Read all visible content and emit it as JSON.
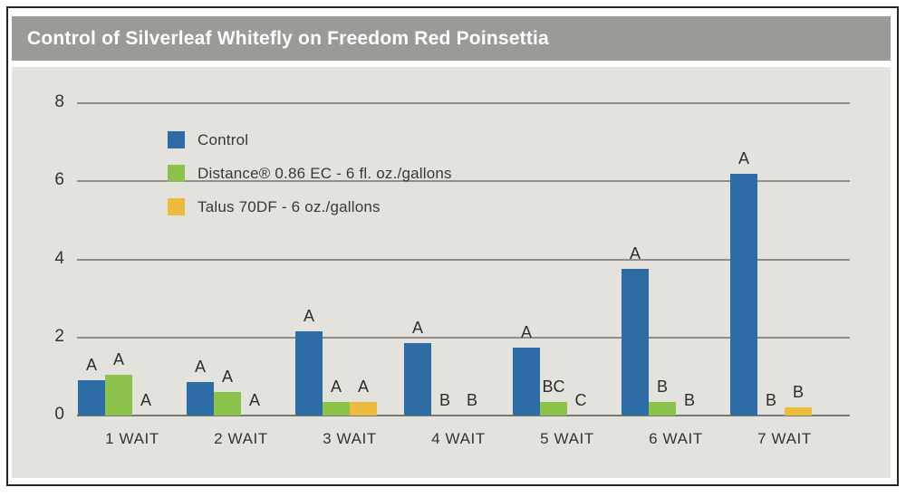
{
  "header": {
    "title": "Control of Silverleaf Whitefly on Freedom Red Poinsettia"
  },
  "chart_data": {
    "type": "bar",
    "title": "Control of Silverleaf Whitefly on Freedom Red Poinsettia",
    "categories": [
      "1 WAIT",
      "2 WAIT",
      "3 WAIT",
      "4 WAIT",
      "5 WAIT",
      "6 WAIT",
      "7 WAIT"
    ],
    "series": [
      {
        "name": "Control",
        "color": "#2e6ca6",
        "values": [
          0.9,
          0.85,
          2.15,
          1.85,
          1.75,
          3.75,
          6.2
        ],
        "sig_letters": [
          "A",
          "A",
          "A",
          "A",
          "A",
          "A",
          "A"
        ]
      },
      {
        "name": "Distance® 0.86 EC - 6 fl. oz./gallons",
        "color": "#8ac24a",
        "values": [
          1.05,
          0.6,
          0.35,
          0,
          0.35,
          0.35,
          0
        ],
        "sig_letters": [
          "A",
          "A",
          "A",
          "B",
          "BC",
          "B",
          "B"
        ]
      },
      {
        "name": "Talus 70DF - 6 oz./gallons",
        "color": "#eebc3d",
        "values": [
          0,
          0,
          0.35,
          0,
          0,
          0,
          0.2
        ],
        "sig_letters": [
          "A",
          "A",
          "A",
          "B",
          "C",
          "B",
          "B"
        ]
      }
    ],
    "xlabel": "",
    "ylabel": "",
    "ylim": [
      0,
      8
    ],
    "yticks": [
      0,
      2,
      4,
      6,
      8
    ],
    "grid": true,
    "legend_position": "upper-left-inside"
  },
  "colors": {
    "page_bg": "#ffffff",
    "panel_bg": "#e3e2dd",
    "header_bg": "#9b9a96",
    "gridline": "#8e8d88",
    "axis_text": "#35342f",
    "outer_border": "#24231f",
    "title_text": "#ffffff"
  }
}
